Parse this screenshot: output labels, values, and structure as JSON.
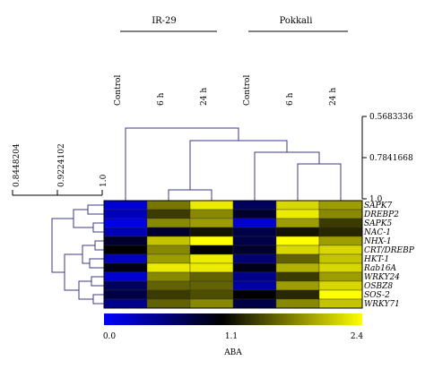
{
  "chart_data": {
    "type": "heatmap",
    "groups": [
      {
        "name": "IR-29",
        "columns": [
          "Control",
          "6 h",
          "24 h"
        ]
      },
      {
        "name": "Pokkali",
        "columns": [
          "Control",
          "6 h",
          "24 h"
        ]
      }
    ],
    "columns": [
      "Control",
      "6 h",
      "24 h",
      "Control",
      "6 h",
      "24 h"
    ],
    "rows": [
      "SAPK7",
      "DREBP2",
      "SAPK5",
      "NAC-1",
      "NHX-1",
      "CRT/DREBP",
      "HKT-1",
      "Rab16A",
      "WRKY24",
      "OSBZ8",
      "SOS-2",
      "WRKY71"
    ],
    "values": [
      [
        0.2,
        1.7,
        2.3,
        0.7,
        2.2,
        1.9
      ],
      [
        0.3,
        1.4,
        1.8,
        0.9,
        2.3,
        1.8
      ],
      [
        0.1,
        1.8,
        1.9,
        0.2,
        1.9,
        1.4
      ],
      [
        0.3,
        0.9,
        1.2,
        0.8,
        1.2,
        1.3
      ],
      [
        0.9,
        2.1,
        2.4,
        0.8,
        2.4,
        1.9
      ],
      [
        1.1,
        1.8,
        1.1,
        0.9,
        2.2,
        2.2
      ],
      [
        0.3,
        1.9,
        2.3,
        0.6,
        1.6,
        2.1
      ],
      [
        1.0,
        2.3,
        2.3,
        1.0,
        2.0,
        2.2
      ],
      [
        0.2,
        1.8,
        1.6,
        0.5,
        1.4,
        1.9
      ],
      [
        0.7,
        1.6,
        1.6,
        0.4,
        1.9,
        2.2
      ],
      [
        0.8,
        1.4,
        1.5,
        1.1,
        1.3,
        2.4
      ],
      [
        0.5,
        1.6,
        1.8,
        0.8,
        1.8,
        2.1
      ]
    ],
    "colorbar": {
      "label": "ABA",
      "min": 0.0,
      "mid": 1.1,
      "max": 2.4,
      "tick_labels": [
        "0.0",
        "1.1",
        "2.4"
      ],
      "colors": [
        "#0000ff",
        "#000000",
        "#ffff00"
      ]
    },
    "column_dendrogram_scale": [
      "0.5683336",
      "0.7841668",
      "1.0"
    ],
    "row_dendrogram_scale": [
      "0.8448204",
      "0.9224102",
      "1.0"
    ]
  }
}
